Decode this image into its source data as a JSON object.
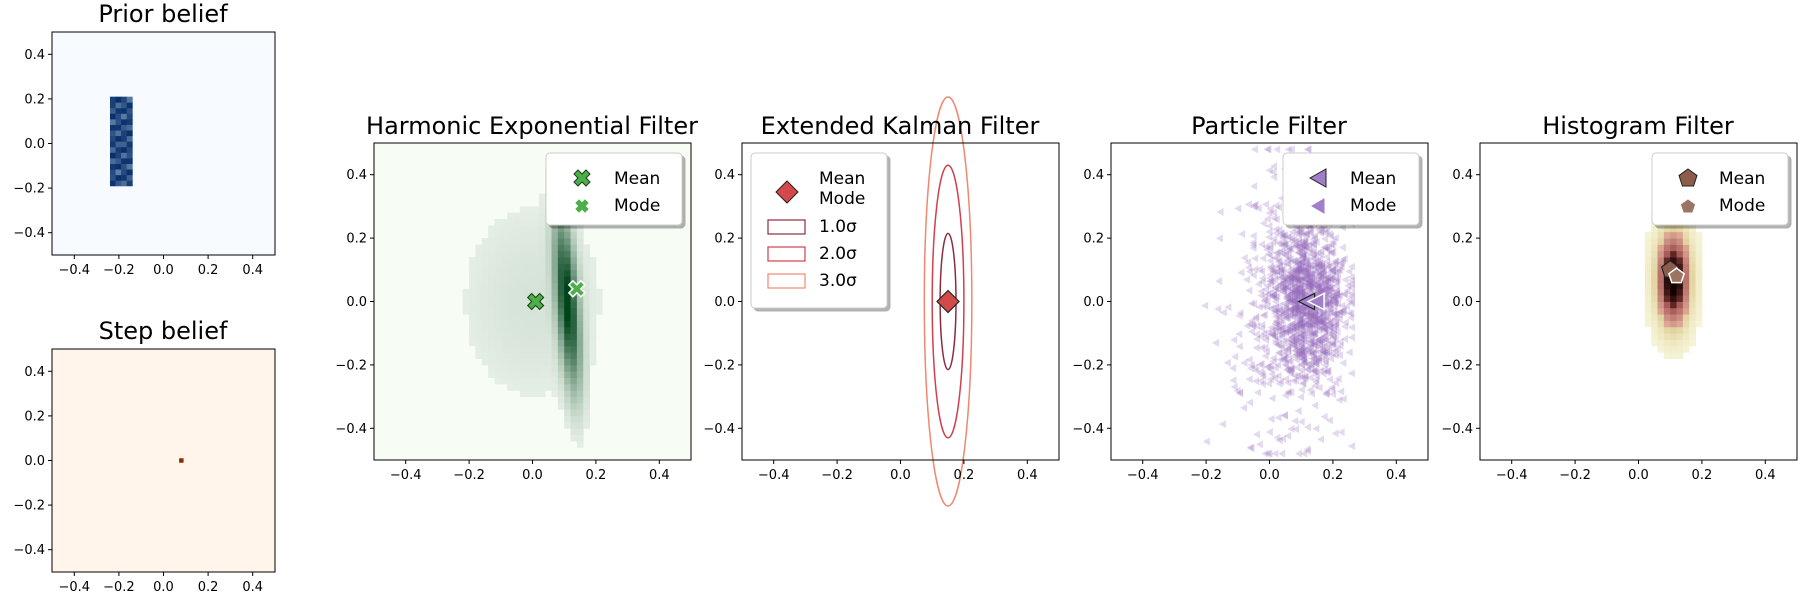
{
  "chart_data": [
    {
      "id": "prior",
      "type": "heatmap",
      "title": "Prior belief",
      "cmap": "Blues",
      "xlim": [
        -0.5,
        0.5
      ],
      "ylim": [
        -0.5,
        0.5
      ],
      "xticks": [
        -0.4,
        -0.2,
        0.0,
        0.2,
        0.4
      ],
      "yticks": [
        -0.4,
        -0.2,
        0.0,
        0.2,
        0.4
      ],
      "tick_labels": [
        "−0.4",
        "−0.2",
        "0.0",
        "0.2",
        "0.4"
      ],
      "density_region": {
        "x": [
          -0.24,
          -0.15
        ],
        "y": [
          -0.19,
          0.19
        ]
      }
    },
    {
      "id": "step",
      "type": "heatmap",
      "title": "Step belief",
      "cmap": "Oranges",
      "xlim": [
        -0.5,
        0.5
      ],
      "ylim": [
        -0.5,
        0.5
      ],
      "xticks": [
        -0.4,
        -0.2,
        0.0,
        0.2,
        0.4
      ],
      "yticks": [
        -0.4,
        -0.2,
        0.0,
        0.2,
        0.4
      ],
      "tick_labels": [
        "−0.4",
        "−0.2",
        "0.0",
        "0.2",
        "0.4"
      ],
      "peak": {
        "x": 0.08,
        "y": 0.0
      }
    },
    {
      "id": "hef",
      "type": "heatmap",
      "title": "Harmonic Exponential Filter",
      "cmap": "Greens",
      "xlim": [
        -0.5,
        0.5
      ],
      "ylim": [
        -0.5,
        0.5
      ],
      "xticks": [
        -0.4,
        -0.2,
        0.0,
        0.2,
        0.4
      ],
      "yticks": [
        -0.4,
        -0.2,
        0.0,
        0.2,
        0.4
      ],
      "tick_labels": [
        "−0.4",
        "−0.2",
        "0.0",
        "0.2",
        "0.4"
      ],
      "mean": {
        "x": 0.01,
        "y": 0.0
      },
      "mode": {
        "x": 0.14,
        "y": 0.04
      },
      "legend": [
        "Mean",
        "Mode"
      ],
      "legend_loc": "upper right",
      "colors": {
        "mean": "#4daf4a",
        "mode": "#4daf4a"
      }
    },
    {
      "id": "ekf",
      "type": "scatter",
      "title": "Extended Kalman Filter",
      "xlim": [
        -0.5,
        0.5
      ],
      "ylim": [
        -0.5,
        0.5
      ],
      "xticks": [
        -0.4,
        -0.2,
        0.0,
        0.2,
        0.4
      ],
      "yticks": [
        -0.4,
        -0.2,
        0.0,
        0.2,
        0.4
      ],
      "tick_labels": [
        "−0.4",
        "−0.2",
        "0.0",
        "0.2",
        "0.4"
      ],
      "mean": {
        "x": 0.15,
        "y": 0.0
      },
      "mode": {
        "x": 0.15,
        "y": 0.0
      },
      "sigma": {
        "x": 0.025,
        "y": 0.215
      },
      "legend": [
        "Mean",
        "Mode",
        "1.0σ",
        "2.0σ",
        "3.0σ"
      ],
      "legend_loc": "upper left",
      "colors": {
        "mean": "#d44a4a",
        "s1": "#8b2d3f",
        "s2": "#d0404e",
        "s3": "#f08870"
      }
    },
    {
      "id": "pf",
      "type": "scatter",
      "title": "Particle Filter",
      "xlim": [
        -0.5,
        0.5
      ],
      "ylim": [
        -0.5,
        0.5
      ],
      "xticks": [
        -0.4,
        -0.2,
        0.0,
        0.2,
        0.4
      ],
      "yticks": [
        -0.4,
        -0.2,
        0.0,
        0.2,
        0.4
      ],
      "tick_labels": [
        "−0.4",
        "−0.2",
        "0.0",
        "0.2",
        "0.4"
      ],
      "mean": {
        "x": 0.12,
        "y": 0.0
      },
      "mode": {
        "x": 0.15,
        "y": 0.0
      },
      "particles": {
        "x_range": [
          -0.24,
          0.26
        ],
        "y_range": [
          -0.5,
          0.5
        ]
      },
      "legend": [
        "Mean",
        "Mode"
      ],
      "legend_loc": "upper right",
      "colors": {
        "particle": "#9467bd"
      }
    },
    {
      "id": "hf",
      "type": "heatmap",
      "title": "Histogram Filter",
      "cmap": "pink_r",
      "xlim": [
        -0.5,
        0.5
      ],
      "ylim": [
        -0.5,
        0.5
      ],
      "xticks": [
        -0.4,
        -0.2,
        0.0,
        0.2,
        0.4
      ],
      "yticks": [
        -0.4,
        -0.2,
        0.0,
        0.2,
        0.4
      ],
      "tick_labels": [
        "−0.4",
        "−0.2",
        "0.0",
        "0.2",
        "0.4"
      ],
      "mean": {
        "x": 0.1,
        "y": 0.1
      },
      "mode": {
        "x": 0.12,
        "y": 0.08
      },
      "legend": [
        "Mean",
        "Mode"
      ],
      "legend_loc": "upper right",
      "colors": {
        "mean": "#8c5d4a",
        "mode": "#9c7462"
      }
    }
  ]
}
